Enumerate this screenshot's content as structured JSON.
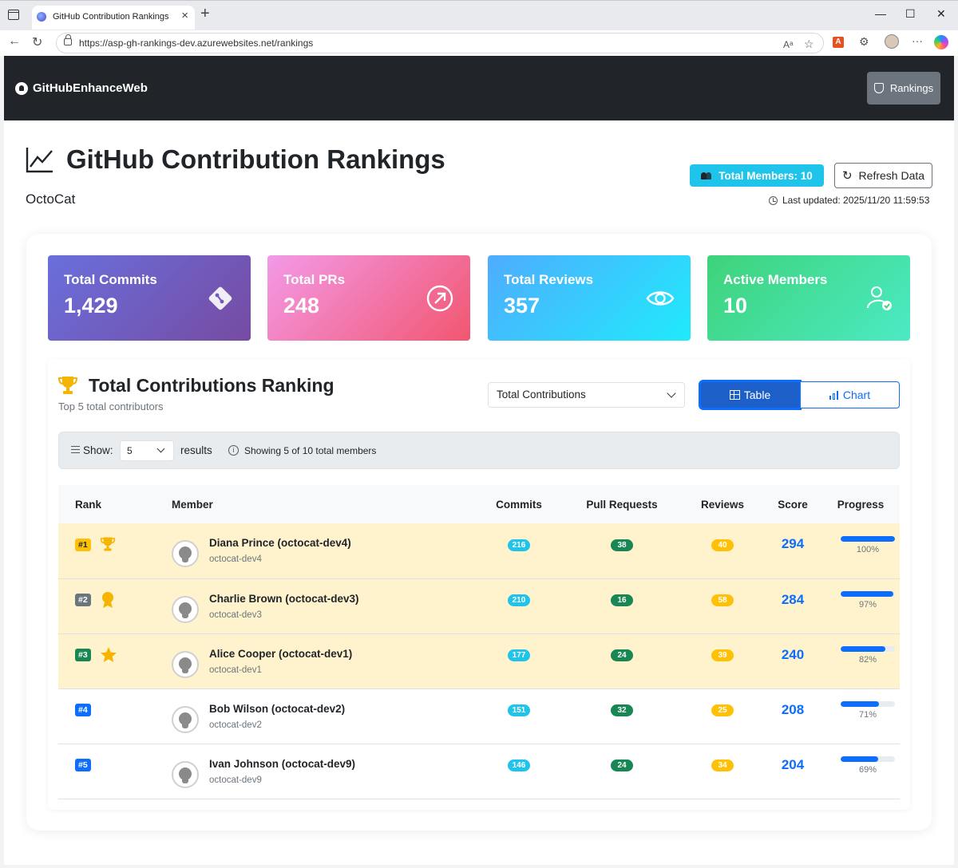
{
  "browser": {
    "tab_title": "GitHub Contribution Rankings",
    "url": "https://asp-gh-rankings-dev.azurewebsites.net/rankings"
  },
  "navbar": {
    "brand": "GitHubEnhanceWeb",
    "rankings_label": "Rankings"
  },
  "header": {
    "title": "GitHub Contribution Rankings",
    "subtitle": "OctoCat",
    "total_members": "Total Members: 10",
    "refresh_label": "Refresh Data",
    "last_updated": "Last updated: 2025/11/20 11:59:53"
  },
  "stats": [
    {
      "label": "Total Commits",
      "value": "1,429",
      "icon": "git-commit-icon"
    },
    {
      "label": "Total PRs",
      "value": "248",
      "icon": "arrow-up-right-circle-icon"
    },
    {
      "label": "Total Reviews",
      "value": "357",
      "icon": "eye-icon"
    },
    {
      "label": "Active Members",
      "value": "10",
      "icon": "person-check-icon"
    }
  ],
  "ranking": {
    "title": "Total Contributions Ranking",
    "subtitle": "Top 5 total contributors",
    "metric_selected": "Total Contributions",
    "view_table": "Table",
    "view_chart": "Chart",
    "show_label": "Show:",
    "show_value": "5",
    "results_label": "results",
    "showing_text": "Showing 5 of 10 total members",
    "columns": [
      "Rank",
      "Member",
      "Commits",
      "Pull Requests",
      "Reviews",
      "Score",
      "Progress"
    ],
    "rows": [
      {
        "rank": "#1",
        "name": "Diana Prince (octocat-dev4)",
        "login": "octocat-dev4",
        "commits": "216",
        "prs": "38",
        "reviews": "40",
        "score": "294",
        "progress": 1.0,
        "progress_label": "100%"
      },
      {
        "rank": "#2",
        "name": "Charlie Brown (octocat-dev3)",
        "login": "octocat-dev3",
        "commits": "210",
        "prs": "16",
        "reviews": "58",
        "score": "284",
        "progress": 0.97,
        "progress_label": "97%"
      },
      {
        "rank": "#3",
        "name": "Alice Cooper (octocat-dev1)",
        "login": "octocat-dev1",
        "commits": "177",
        "prs": "24",
        "reviews": "39",
        "score": "240",
        "progress": 0.82,
        "progress_label": "82%"
      },
      {
        "rank": "#4",
        "name": "Bob Wilson (octocat-dev2)",
        "login": "octocat-dev2",
        "commits": "151",
        "prs": "32",
        "reviews": "25",
        "score": "208",
        "progress": 0.71,
        "progress_label": "71%"
      },
      {
        "rank": "#5",
        "name": "Ivan Johnson (octocat-dev9)",
        "login": "octocat-dev9",
        "commits": "146",
        "prs": "24",
        "reviews": "34",
        "score": "204",
        "progress": 0.69,
        "progress_label": "69%"
      }
    ]
  },
  "colors": {
    "navbar": "#212529",
    "primary": "#0d6efd",
    "info": "#20c4ea",
    "success": "#198754",
    "warning": "#ffc107",
    "highlight_row": "#fff3cd"
  }
}
